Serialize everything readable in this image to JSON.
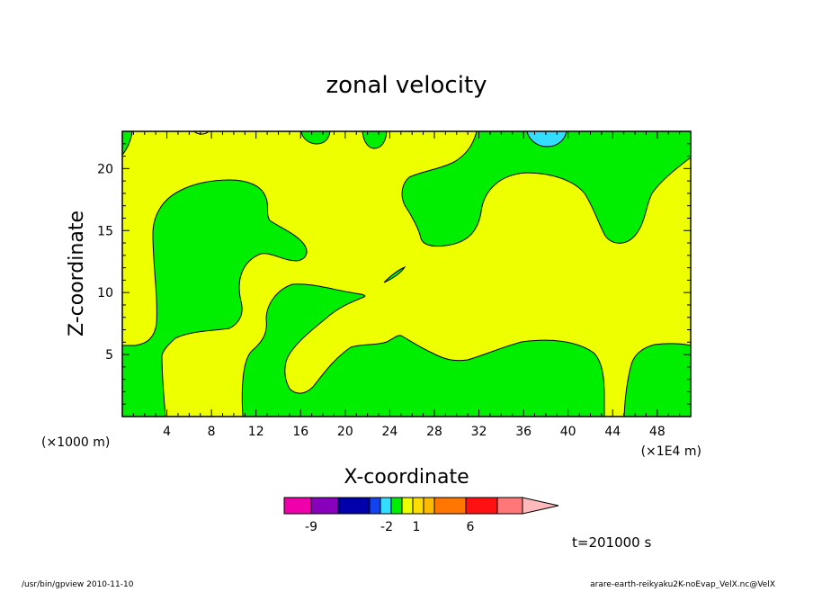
{
  "chart_data": {
    "type": "heatmap",
    "title": "zonal velocity",
    "xlabel": "X-coordinate",
    "ylabel": "Z-coordinate",
    "x_unit_left": "(×1000 m)",
    "x_unit_right": "(×1E4 m)",
    "x_ticks": [
      4,
      8,
      12,
      16,
      20,
      24,
      28,
      32,
      36,
      40,
      44,
      48
    ],
    "y_ticks": [
      5,
      10,
      15,
      20
    ],
    "xlim": [
      0,
      51
    ],
    "ylim": [
      0,
      23
    ],
    "time_label": "t=201000 s",
    "colors": {
      "yellow": "#eeff00",
      "green": "#00ee00",
      "cyan": "#33ddff"
    },
    "colorbar": {
      "colors": [
        "#ee00aa",
        "#8800bb",
        "#0000aa",
        "#1144ee",
        "#33ddff",
        "#00ee00",
        "#eeff00",
        "#ffdd00",
        "#ffbb00",
        "#ff7700",
        "#ff1111",
        "#ff7777",
        "#ffbbbb"
      ],
      "tick_labels": [
        "-9",
        "-2",
        "1",
        "6"
      ]
    }
  },
  "footer": {
    "left": "/usr/bin/gpview   2010-11-10",
    "right": "arare-earth-reikyaku2K-noEvap_VelX.nc@VelX"
  }
}
